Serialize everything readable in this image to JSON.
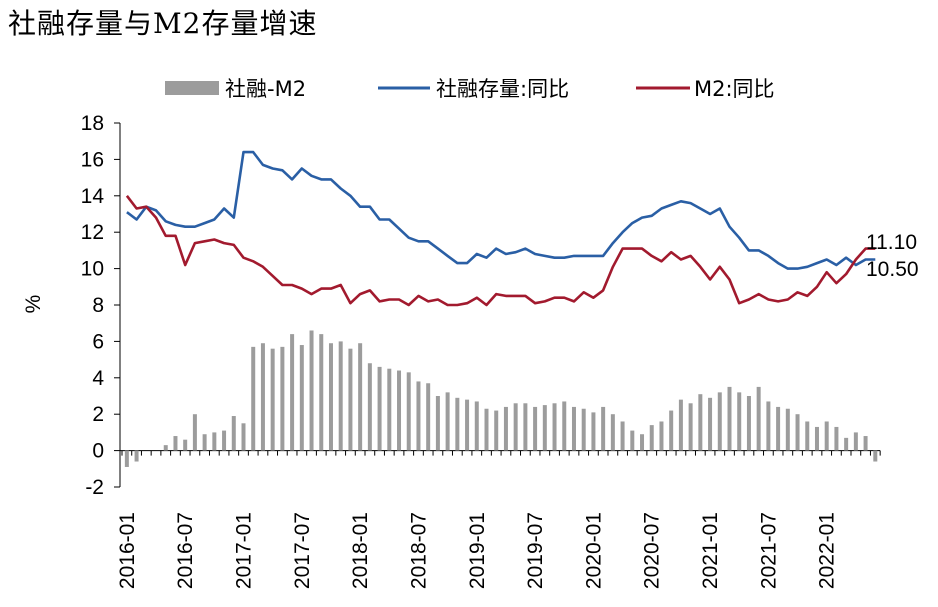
{
  "title": "社融存量与M2存量增速",
  "chart_data": {
    "type": "bar+line",
    "title": "社融存量与M2存量增速",
    "ylabel": "%",
    "ylim": [
      -2,
      18
    ],
    "yticks": [
      -2,
      0,
      2,
      4,
      6,
      8,
      10,
      12,
      14,
      16,
      18
    ],
    "xtick_labels": [
      "2016-01",
      "2016-07",
      "2017-01",
      "2017-07",
      "2018-01",
      "2018-07",
      "2019-01",
      "2019-07",
      "2020-01",
      "2020-07",
      "2021-01",
      "2021-07",
      "2022-01"
    ],
    "x": [
      "2016-01",
      "2016-02",
      "2016-03",
      "2016-04",
      "2016-05",
      "2016-06",
      "2016-07",
      "2016-08",
      "2016-09",
      "2016-10",
      "2016-11",
      "2016-12",
      "2017-01",
      "2017-02",
      "2017-03",
      "2017-04",
      "2017-05",
      "2017-06",
      "2017-07",
      "2017-08",
      "2017-09",
      "2017-10",
      "2017-11",
      "2017-12",
      "2018-01",
      "2018-02",
      "2018-03",
      "2018-04",
      "2018-05",
      "2018-06",
      "2018-07",
      "2018-08",
      "2018-09",
      "2018-10",
      "2018-11",
      "2018-12",
      "2019-01",
      "2019-02",
      "2019-03",
      "2019-04",
      "2019-05",
      "2019-06",
      "2019-07",
      "2019-08",
      "2019-09",
      "2019-10",
      "2019-11",
      "2019-12",
      "2020-01",
      "2020-02",
      "2020-03",
      "2020-04",
      "2020-05",
      "2020-06",
      "2020-07",
      "2020-08",
      "2020-09",
      "2020-10",
      "2020-11",
      "2020-12",
      "2021-01",
      "2021-02",
      "2021-03",
      "2021-04",
      "2021-05",
      "2021-06",
      "2021-07",
      "2021-08",
      "2021-09",
      "2021-10",
      "2021-11",
      "2021-12",
      "2022-01",
      "2022-02",
      "2022-03",
      "2022-04",
      "2022-05",
      "2022-06"
    ],
    "legend": {
      "position": "top"
    },
    "grid": false,
    "series": [
      {
        "name": "社融-M2",
        "type": "bar",
        "color": "#9c9c9c",
        "values": [
          -0.9,
          -0.6,
          0,
          0,
          0.3,
          0.8,
          0.6,
          2.0,
          0.9,
          1.0,
          1.1,
          1.9,
          1.5,
          5.7,
          5.9,
          5.6,
          5.7,
          6.4,
          5.8,
          6.6,
          6.4,
          5.9,
          6.0,
          5.6,
          5.9,
          4.8,
          4.6,
          4.5,
          4.4,
          4.3,
          3.8,
          3.7,
          3.0,
          3.2,
          2.9,
          2.8,
          2.7,
          2.3,
          2.2,
          2.4,
          2.6,
          2.6,
          2.4,
          2.5,
          2.6,
          2.7,
          2.4,
          2.3,
          2.1,
          2.4,
          2.0,
          1.6,
          1.1,
          0.9,
          1.4,
          1.6,
          2.2,
          2.8,
          2.6,
          3.1,
          2.9,
          3.2,
          3.5,
          3.2,
          3.0,
          3.5,
          2.7,
          2.4,
          2.3,
          2.0,
          1.6,
          1.3,
          1.6,
          1.3,
          0.7,
          1.0,
          0.8,
          -0.6
        ]
      },
      {
        "name": "社融存量:同比",
        "type": "line",
        "color": "#2a5fa5",
        "values": [
          13.1,
          12.7,
          13.4,
          13.2,
          12.6,
          12.4,
          12.3,
          12.3,
          12.5,
          12.7,
          13.3,
          12.8,
          16.4,
          16.4,
          15.7,
          15.5,
          15.4,
          14.9,
          15.5,
          15.1,
          14.9,
          14.9,
          14.4,
          14.0,
          13.4,
          13.4,
          12.7,
          12.7,
          12.2,
          11.7,
          11.5,
          11.5,
          11.1,
          10.7,
          10.3,
          10.3,
          10.8,
          10.6,
          11.1,
          10.8,
          10.9,
          11.1,
          10.8,
          10.7,
          10.6,
          10.6,
          10.7,
          10.7,
          10.7,
          10.7,
          11.4,
          12.0,
          12.5,
          12.8,
          12.9,
          13.3,
          13.5,
          13.7,
          13.6,
          13.3,
          13.0,
          13.3,
          12.3,
          11.7,
          11.0,
          11.0,
          10.7,
          10.3,
          10.0,
          10.0,
          10.1,
          10.3,
          10.5,
          10.2,
          10.6,
          10.2,
          10.5,
          10.5
        ]
      },
      {
        "name": "M2:同比",
        "type": "line",
        "color": "#a21a2e",
        "values": [
          14.0,
          13.3,
          13.4,
          12.8,
          11.8,
          11.8,
          10.2,
          11.4,
          11.5,
          11.6,
          11.4,
          11.3,
          10.6,
          10.4,
          10.1,
          9.6,
          9.1,
          9.1,
          8.9,
          8.6,
          8.9,
          8.9,
          9.1,
          8.1,
          8.6,
          8.8,
          8.2,
          8.3,
          8.3,
          8.0,
          8.5,
          8.2,
          8.3,
          8.0,
          8.0,
          8.1,
          8.4,
          8.0,
          8.6,
          8.5,
          8.5,
          8.5,
          8.1,
          8.2,
          8.4,
          8.4,
          8.2,
          8.7,
          8.4,
          8.8,
          10.1,
          11.1,
          11.1,
          11.1,
          10.7,
          10.4,
          10.9,
          10.5,
          10.7,
          10.1,
          9.4,
          10.1,
          9.4,
          8.1,
          8.3,
          8.6,
          8.3,
          8.2,
          8.3,
          8.7,
          8.5,
          9.0,
          9.8,
          9.2,
          9.7,
          10.5,
          11.1,
          11.1
        ]
      }
    ],
    "end_labels": [
      "11.10",
      "10.50"
    ]
  }
}
